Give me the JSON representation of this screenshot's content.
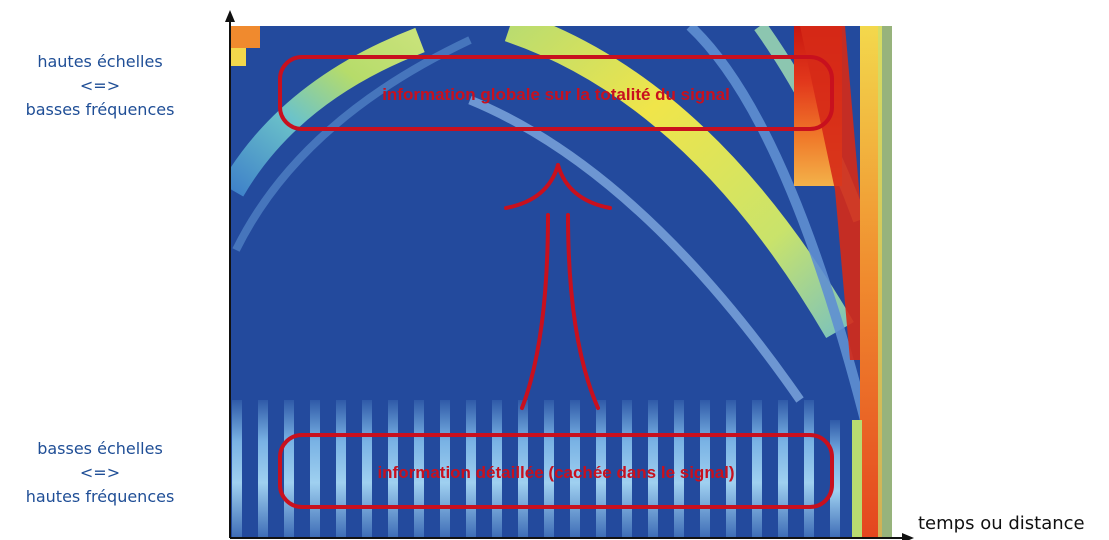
{
  "labels": {
    "high_scales": [
      "hautes échelles",
      "<=>",
      "basses fréquences"
    ],
    "low_scales": [
      "basses échelles",
      "<=>",
      "hautes fréquences"
    ],
    "x_axis": "temps ou distance"
  },
  "annotations": {
    "top_box": "information globale sur la totalité du signal",
    "bottom_box": "information détaillée (cachée dans le signal)"
  },
  "colors": {
    "background": "#234a9d",
    "annotation": "#c8101e",
    "side_text": "#1f4e96",
    "axis": "#111111"
  }
}
